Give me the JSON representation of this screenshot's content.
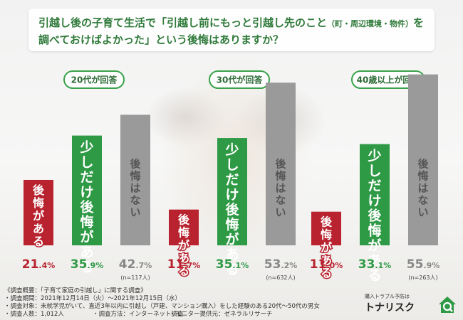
{
  "title": {
    "line1_prefix": "引越し後の子育て生活で「引越し前にもっと引越し先のこと",
    "line1_paren": "（町・周辺環境・物件）",
    "line1_suffix": "を",
    "line2": "調べておけばよかった」という後悔はありますか？"
  },
  "chart_data": [
    {
      "type": "bar",
      "group_label": "20代が回答",
      "categories": [
        "後悔がある",
        "少しだけ後悔がある",
        "後悔はない"
      ],
      "values": [
        21.4,
        35.9,
        42.7
      ],
      "value_labels": [
        "21.4%",
        "35.9%",
        "42.7%"
      ],
      "n": "(n=117人)"
    },
    {
      "type": "bar",
      "group_label": "30代が回答",
      "categories": [
        "後悔がある",
        "少しだけ後悔がある",
        "後悔はない"
      ],
      "values": [
        11.7,
        35.1,
        53.2
      ],
      "value_labels": [
        "11.7%",
        "35.1%",
        "53.2%"
      ],
      "n": "(n=632人)"
    },
    {
      "type": "bar",
      "group_label": "40歳以上が回答",
      "categories": [
        "後悔がある",
        "少しだけ後悔がある",
        "後悔はない"
      ],
      "values": [
        11.0,
        33.1,
        55.9
      ],
      "value_labels": [
        "11.0%",
        "33.1%",
        "55.9%"
      ],
      "n": "(n=263人)"
    }
  ],
  "colors": {
    "regret": "#b8232f",
    "slight": "#2f9a45",
    "none": "#9a9a9a",
    "title": "#2f7a3a",
    "group_border": "#39a24a"
  },
  "footer": {
    "summary": "《調査概要：「子育て家庭の引越し」に関する調査》",
    "period": "・調査期間：2021年12月14日（火）～2021年12月15日（水）",
    "target": "・調査対象：未就学児がいて、直近3年以内に引越し（戸建、マンション購入）をした経験のある20代～50代の男女",
    "count": "・調査人数：1,012人",
    "method": "・調査方法：インターネット調査",
    "provider": "・モニター提供元：ゼネラルリサーチ"
  },
  "logo": {
    "subtitle": "購入トラブル予防は",
    "name": "トナリスク",
    "icon": "house-magnifier-icon"
  }
}
